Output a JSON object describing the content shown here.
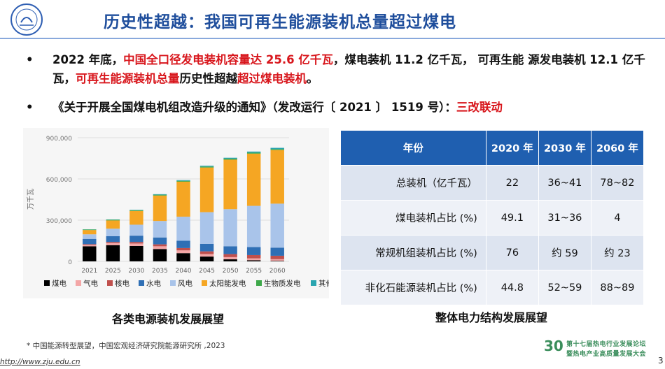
{
  "header": {
    "title": "历史性超越：我国可再生能源装机总量超过煤电"
  },
  "bullets": [
    {
      "segments": [
        {
          "text": "2022 年底，",
          "red": false
        },
        {
          "text": "中国全口径发电装机容量达 25.6 亿千瓦",
          "red": true
        },
        {
          "text": "，煤电装机 11.2 亿千瓦， 可再生能 源发电装机 12.1 亿千瓦，",
          "red": false
        },
        {
          "text": "可再生能源装机总量",
          "red": true
        },
        {
          "text": "历史性超越",
          "red": false
        },
        {
          "text": "超过煤电装机",
          "red": true
        },
        {
          "text": "。",
          "red": false
        }
      ]
    },
    {
      "segments": [
        {
          "text": "《关于开展全国煤电机组改造升级的通知》（发改运行〔 2021 〕 1519 号）：",
          "red": false
        },
        {
          "text": "三改联动",
          "red": true
        }
      ]
    }
  ],
  "chart_data": {
    "type": "bar",
    "stacked": true,
    "ylabel": "万千瓦",
    "ylim": [
      0,
      900000
    ],
    "yticks": [
      0,
      300000,
      600000,
      900000
    ],
    "ytick_labels": [
      "0",
      "300,000",
      "600,000",
      "900,000"
    ],
    "categories": [
      "2021",
      "2025",
      "2030",
      "2035",
      "2040",
      "2045",
      "2050",
      "2055",
      "2060"
    ],
    "series": [
      {
        "name": "煤电",
        "color": "#000000",
        "values": [
          110000,
          118000,
          112000,
          90000,
          60000,
          35000,
          15000,
          8000,
          4000
        ]
      },
      {
        "name": "气电",
        "color": "#f3a6a6",
        "values": [
          10000,
          15000,
          18000,
          20000,
          20000,
          18000,
          16000,
          14000,
          12000
        ]
      },
      {
        "name": "核电",
        "color": "#c0504d",
        "values": [
          5000,
          8000,
          11000,
          14000,
          17000,
          20000,
          22000,
          24000,
          25000
        ]
      },
      {
        "name": "水电",
        "color": "#2f6fb5",
        "values": [
          39000,
          42000,
          46000,
          50000,
          53000,
          55000,
          57000,
          58000,
          59000
        ]
      },
      {
        "name": "风电",
        "color": "#a9c4ea",
        "values": [
          33000,
          55000,
          80000,
          120000,
          175000,
          230000,
          270000,
          300000,
          320000
        ]
      },
      {
        "name": "太阳能发电",
        "color": "#f5a623",
        "values": [
          31000,
          60000,
          100000,
          185000,
          255000,
          325000,
          360000,
          380000,
          390000
        ]
      },
      {
        "name": "生物质发电",
        "color": "#3ea84a",
        "values": [
          4000,
          5000,
          5000,
          6000,
          6000,
          7000,
          7000,
          7000,
          7000
        ]
      },
      {
        "name": "其他",
        "color": "#2aa5b0",
        "values": [
          1000,
          2000,
          3000,
          4000,
          5000,
          6000,
          7000,
          8000,
          9000
        ]
      }
    ]
  },
  "chart_caption": "各类电源装机发展展望",
  "table": {
    "headers": [
      "年份",
      "2020 年",
      "2030 年",
      "2060 年"
    ],
    "rows": [
      [
        "总装机（亿千瓦）",
        "22",
        "36~41",
        "78~82"
      ],
      [
        "煤电装机占比 (%)",
        "49.1",
        "31~36",
        "4"
      ],
      [
        "常规机组装机占比 (%)",
        "76",
        "约 59",
        "约 23"
      ],
      [
        "非化石能源装机占比 (%)",
        "44.8",
        "52~59",
        "88~89"
      ]
    ],
    "caption": "整体电力结构发展展望"
  },
  "footer": {
    "footnote": "* 中国能源转型展望，中国宏观经济研究院能源研究所 ,2023",
    "url": "http://www.zju.edu.cn",
    "page_number": "3",
    "conference_line1": "第十七届热电行业发展论坛",
    "conference_line2": "暨热电产业高质量发展大会",
    "conference_mark": "30"
  },
  "colors": {
    "title": "#1f4e9c",
    "highlight": "#d8161c",
    "table_header": "#1f5fb0"
  }
}
